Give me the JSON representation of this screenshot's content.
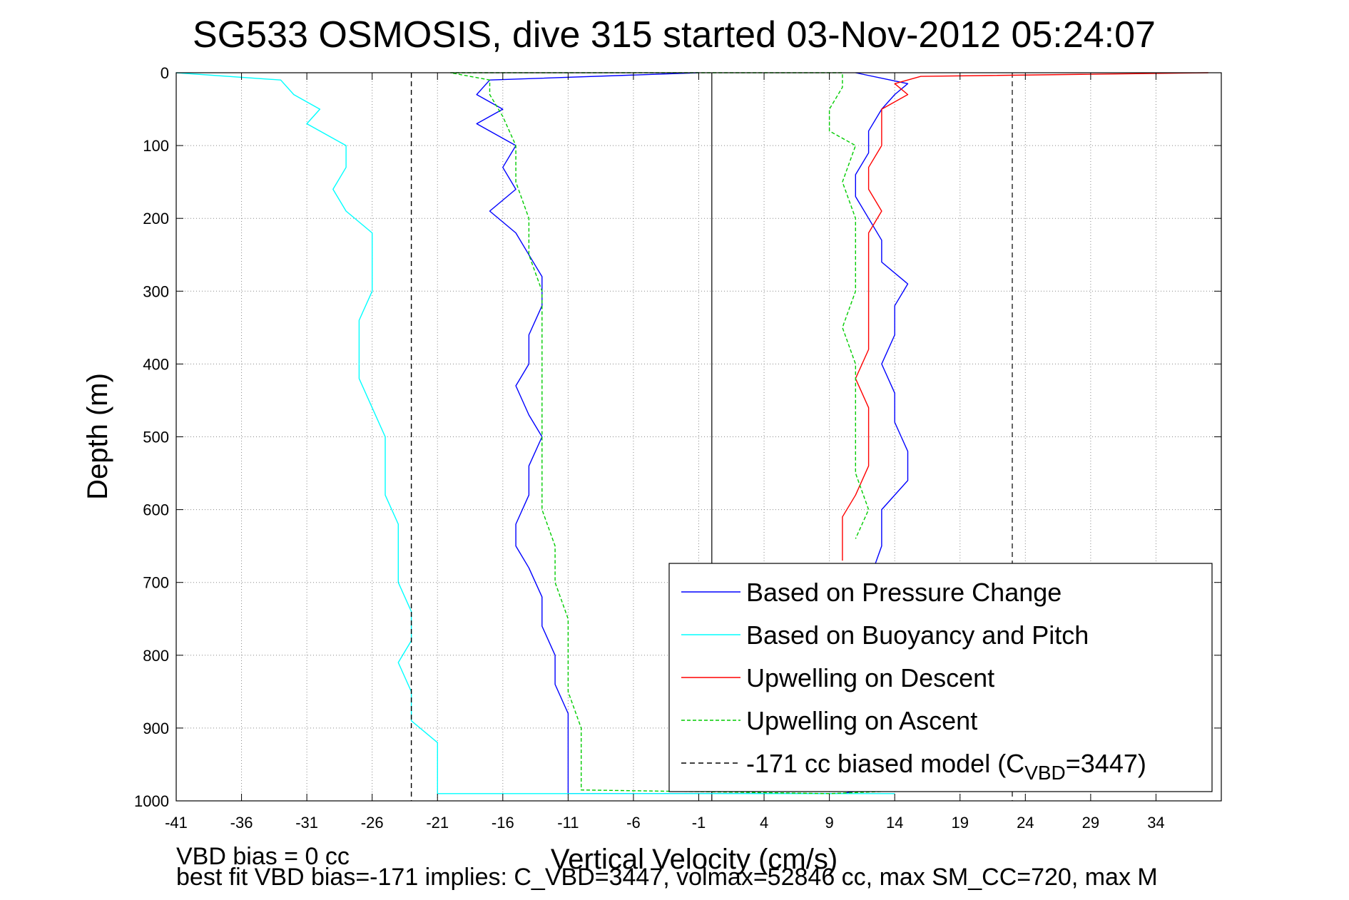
{
  "chart_data": {
    "type": "line",
    "title": "SG533 OSMOSIS, dive 315 started 03-Nov-2012 05:24:07",
    "xlabel": "Vertical Velocity (cm/s)",
    "ylabel": "Depth (m)",
    "xlim": [
      -41,
      39
    ],
    "ylim": [
      1000,
      0
    ],
    "y_reversed": true,
    "x_ticks": [
      -41,
      -36,
      -31,
      -26,
      -21,
      -16,
      -11,
      -6,
      -1,
      4,
      9,
      14,
      19,
      24,
      29,
      34
    ],
    "y_ticks": [
      0,
      100,
      200,
      300,
      400,
      500,
      600,
      700,
      800,
      900,
      1000
    ],
    "grid": true,
    "legend_position": "lower-right",
    "series": [
      {
        "name": "Based on Pressure Change",
        "color": "#0000ff",
        "style": "solid",
        "points": [
          [
            -1,
            0
          ],
          [
            -17,
            10
          ],
          [
            -18,
            30
          ],
          [
            -16,
            50
          ],
          [
            -18,
            70
          ],
          [
            -15,
            100
          ],
          [
            -16,
            130
          ],
          [
            -15,
            160
          ],
          [
            -17,
            190
          ],
          [
            -15,
            220
          ],
          [
            -14,
            250
          ],
          [
            -13,
            280
          ],
          [
            -13,
            320
          ],
          [
            -14,
            360
          ],
          [
            -14,
            400
          ],
          [
            -15,
            430
          ],
          [
            -14,
            470
          ],
          [
            -13,
            500
          ],
          [
            -14,
            540
          ],
          [
            -14,
            580
          ],
          [
            -15,
            620
          ],
          [
            -15,
            650
          ],
          [
            -14,
            680
          ],
          [
            -13,
            720
          ],
          [
            -13,
            760
          ],
          [
            -12,
            800
          ],
          [
            -12,
            840
          ],
          [
            -11,
            880
          ],
          [
            -11,
            920
          ],
          [
            -11,
            960
          ],
          [
            -11,
            990
          ],
          [
            -1,
            990
          ],
          [
            10,
            990
          ],
          [
            13,
            980
          ],
          [
            12,
            950
          ],
          [
            12,
            900
          ],
          [
            12,
            860
          ],
          [
            12,
            800
          ],
          [
            12,
            760
          ],
          [
            12,
            700
          ],
          [
            13,
            650
          ],
          [
            13,
            600
          ],
          [
            15,
            560
          ],
          [
            15,
            520
          ],
          [
            14,
            480
          ],
          [
            14,
            440
          ],
          [
            13,
            400
          ],
          [
            14,
            360
          ],
          [
            14,
            320
          ],
          [
            15,
            290
          ],
          [
            13,
            260
          ],
          [
            13,
            230
          ],
          [
            12,
            200
          ],
          [
            11,
            170
          ],
          [
            11,
            140
          ],
          [
            12,
            110
          ],
          [
            12,
            80
          ],
          [
            13,
            50
          ],
          [
            14,
            30
          ],
          [
            15,
            15
          ],
          [
            11,
            0
          ]
        ]
      },
      {
        "name": "Based on Buoyancy and Pitch",
        "color": "#00ffff",
        "style": "solid",
        "points": [
          [
            -41,
            0
          ],
          [
            -33,
            10
          ],
          [
            -32,
            30
          ],
          [
            -30,
            50
          ],
          [
            -31,
            70
          ],
          [
            -28,
            100
          ],
          [
            -28,
            130
          ],
          [
            -29,
            160
          ],
          [
            -28,
            190
          ],
          [
            -26,
            220
          ],
          [
            -26,
            260
          ],
          [
            -26,
            300
          ],
          [
            -27,
            340
          ],
          [
            -27,
            380
          ],
          [
            -27,
            420
          ],
          [
            -26,
            460
          ],
          [
            -25,
            500
          ],
          [
            -25,
            540
          ],
          [
            -25,
            580
          ],
          [
            -24,
            620
          ],
          [
            -24,
            660
          ],
          [
            -24,
            700
          ],
          [
            -23,
            740
          ],
          [
            -23,
            780
          ],
          [
            -24,
            810
          ],
          [
            -23,
            850
          ],
          [
            -23,
            890
          ],
          [
            -21,
            920
          ],
          [
            -21,
            960
          ],
          [
            -21,
            990
          ],
          [
            -5,
            990
          ],
          [
            14,
            990
          ]
        ]
      },
      {
        "name": "Upwelling on Descent",
        "color": "#ff0000",
        "style": "solid",
        "points": [
          [
            38,
            0
          ],
          [
            16,
            5
          ],
          [
            14,
            15
          ],
          [
            15,
            30
          ],
          [
            13,
            50
          ],
          [
            13,
            70
          ],
          [
            13,
            100
          ],
          [
            12,
            130
          ],
          [
            12,
            160
          ],
          [
            13,
            190
          ],
          [
            12,
            220
          ],
          [
            12,
            260
          ],
          [
            12,
            300
          ],
          [
            12,
            340
          ],
          [
            12,
            380
          ],
          [
            11,
            420
          ],
          [
            12,
            460
          ],
          [
            12,
            500
          ],
          [
            12,
            540
          ],
          [
            11,
            580
          ],
          [
            10,
            610
          ],
          [
            10,
            640
          ],
          [
            10,
            670
          ]
        ]
      },
      {
        "name": "Upwelling on Ascent",
        "color": "#00cc00",
        "style": "dashed",
        "points": [
          [
            16,
            985
          ],
          [
            9,
            990
          ],
          [
            -10,
            985
          ],
          [
            -10,
            960
          ],
          [
            -10,
            900
          ],
          [
            -11,
            850
          ],
          [
            -11,
            800
          ],
          [
            -11,
            750
          ],
          [
            -12,
            700
          ],
          [
            -12,
            650
          ],
          [
            -13,
            600
          ],
          [
            -13,
            550
          ],
          [
            -13,
            500
          ],
          [
            -13,
            450
          ],
          [
            -13,
            400
          ],
          [
            -13,
            350
          ],
          [
            -13,
            300
          ],
          [
            -14,
            250
          ],
          [
            -14,
            200
          ],
          [
            -15,
            150
          ],
          [
            -15,
            100
          ],
          [
            -16,
            60
          ],
          [
            -17,
            30
          ],
          [
            -17,
            10
          ],
          [
            -20,
            0
          ],
          [
            -6,
            0
          ],
          [
            10,
            0
          ],
          [
            10,
            20
          ],
          [
            9,
            50
          ],
          [
            9,
            80
          ],
          [
            11,
            100
          ],
          [
            10,
            150
          ],
          [
            11,
            200
          ],
          [
            11,
            250
          ],
          [
            11,
            300
          ],
          [
            10,
            350
          ],
          [
            11,
            400
          ],
          [
            11,
            450
          ],
          [
            11,
            500
          ],
          [
            11,
            550
          ],
          [
            12,
            600
          ],
          [
            11,
            640
          ]
        ]
      },
      {
        "name": "-171 cc biased model (C_VBD=3447)",
        "color": "#000000",
        "style": "dashed",
        "points": [
          [
            -23,
            0
          ],
          [
            -23,
            1000
          ]
        ]
      }
    ],
    "legend_entries": [
      "Based on Pressure Change",
      "Based on Buoyancy and Pitch",
      "Upwelling on Descent",
      "Upwelling on Ascent",
      "-171 cc biased model (C"
    ],
    "legend_last_sub": "VBD",
    "legend_last_suffix": "=3447)",
    "notes": [
      "VBD bias = 0 cc",
      "best fit VBD bias=-171 implies: C_VBD=3447, volmax=52846 cc, max SM_CC=720, max M"
    ]
  }
}
